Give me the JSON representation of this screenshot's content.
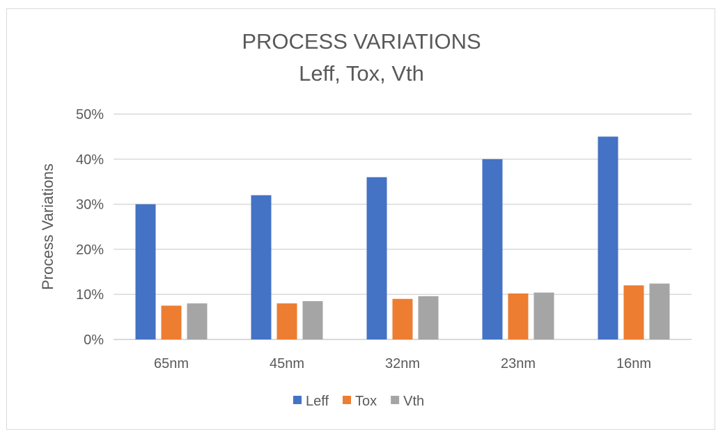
{
  "chart_data": {
    "type": "bar",
    "title": "PROCESS VARIATIONS",
    "subtitle": "Leff, Tox, Vth",
    "xlabel": "",
    "ylabel": "Process Variations",
    "ylim": [
      0,
      50
    ],
    "yticks": [
      "0%",
      "10%",
      "20%",
      "30%",
      "40%",
      "50%"
    ],
    "grid": true,
    "legend_position": "bottom",
    "categories": [
      "65nm",
      "45nm",
      "32nm",
      "23nm",
      "16nm"
    ],
    "series": [
      {
        "name": "Leff",
        "color": "#4472c4",
        "values": [
          30,
          32,
          36,
          40,
          45
        ]
      },
      {
        "name": "Tox",
        "color": "#ed7d31",
        "values": [
          7.5,
          8,
          9,
          10.2,
          12
        ]
      },
      {
        "name": "Vth",
        "color": "#a5a5a5",
        "values": [
          8,
          8.5,
          9.6,
          10.4,
          12.4
        ]
      }
    ]
  }
}
